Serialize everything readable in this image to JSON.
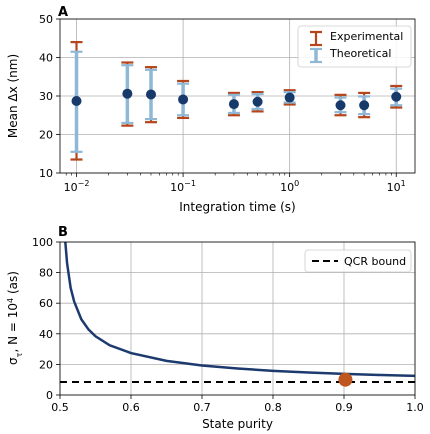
{
  "colors": {
    "experimental": "#b5451b",
    "theoretical": "#8fb8d6",
    "points": "#173a6b",
    "curve": "#1c3a6e",
    "marker": "#c0561f",
    "bound": "#000000"
  },
  "chart_data": [
    {
      "panel": "A",
      "type": "scatter",
      "xscale": "log",
      "xlim": [
        0.007,
        15
      ],
      "ylim": [
        10,
        50
      ],
      "xlabel": "Integration time (s)",
      "ylabel": "Mean Δx (nm)",
      "xticks": [
        0.01,
        0.1,
        1,
        10
      ],
      "xtick_labels": [
        [
          "10",
          "−2"
        ],
        [
          "10",
          "−1"
        ],
        [
          "10",
          "0"
        ],
        [
          "10",
          "1"
        ]
      ],
      "yticks": [
        10,
        20,
        30,
        40,
        50
      ],
      "ytick_labels": [
        "10",
        "20",
        "30",
        "40",
        "50"
      ],
      "grid": true,
      "legend": {
        "position": "top-right",
        "entries": [
          "Experimental",
          "Theoretical"
        ]
      },
      "points": [
        {
          "x": 0.01,
          "y": 28.7,
          "exp": [
            13.5,
            44.0
          ],
          "theo": [
            15.5,
            41.5
          ]
        },
        {
          "x": 0.03,
          "y": 30.6,
          "exp": [
            22.3,
            38.7
          ],
          "theo": [
            23.0,
            38.0
          ]
        },
        {
          "x": 0.05,
          "y": 30.4,
          "exp": [
            23.2,
            37.5
          ],
          "theo": [
            24.0,
            36.8
          ]
        },
        {
          "x": 0.1,
          "y": 29.1,
          "exp": [
            24.3,
            33.9
          ],
          "theo": [
            25.0,
            33.2
          ]
        },
        {
          "x": 0.3,
          "y": 27.9,
          "exp": [
            25.0,
            30.8
          ],
          "theo": [
            25.6,
            30.3
          ]
        },
        {
          "x": 0.5,
          "y": 28.5,
          "exp": [
            26.0,
            31.0
          ],
          "theo": [
            26.6,
            30.5
          ]
        },
        {
          "x": 1,
          "y": 29.6,
          "exp": [
            27.8,
            31.5
          ],
          "theo": [
            28.3,
            31.0
          ]
        },
        {
          "x": 3,
          "y": 27.6,
          "exp": [
            25.0,
            30.3
          ],
          "theo": [
            25.8,
            29.6
          ]
        },
        {
          "x": 5,
          "y": 27.6,
          "exp": [
            24.5,
            30.8
          ],
          "theo": [
            25.3,
            29.9
          ]
        },
        {
          "x": 10,
          "y": 29.8,
          "exp": [
            27.0,
            32.6
          ],
          "theo": [
            27.6,
            31.9
          ]
        }
      ]
    },
    {
      "panel": "B",
      "type": "line",
      "xlim": [
        0.5,
        1.0
      ],
      "ylim": [
        0,
        100
      ],
      "xlabel": "State purity",
      "ylabel_parts": [
        "σ",
        "τ",
        ", N = 10",
        "4",
        " (as)"
      ],
      "xticks": [
        0.5,
        0.6,
        0.7,
        0.8,
        0.9,
        1.0
      ],
      "xtick_labels": [
        "0.5",
        "0.6",
        "0.7",
        "0.8",
        "0.9",
        "1.0"
      ],
      "yticks": [
        0,
        20,
        40,
        60,
        80,
        100
      ],
      "ytick_labels": [
        "0",
        "20",
        "40",
        "60",
        "80",
        "100"
      ],
      "grid": true,
      "legend": {
        "position": "top-right",
        "entries": [
          "QCR bound"
        ]
      },
      "qcr_bound": 8.5,
      "curve": {
        "x": [
          0.5075,
          0.51,
          0.515,
          0.52,
          0.53,
          0.54,
          0.55,
          0.57,
          0.6,
          0.65,
          0.7,
          0.75,
          0.8,
          0.85,
          0.9,
          0.95,
          1.0
        ],
        "y": [
          100,
          86,
          70,
          61,
          49.5,
          42.9,
          38.4,
          32.5,
          27.4,
          22.3,
          19.3,
          17.3,
          15.8,
          14.7,
          13.8,
          13.1,
          12.5
        ]
      },
      "marker": {
        "x": 0.902,
        "y": 10
      }
    }
  ]
}
